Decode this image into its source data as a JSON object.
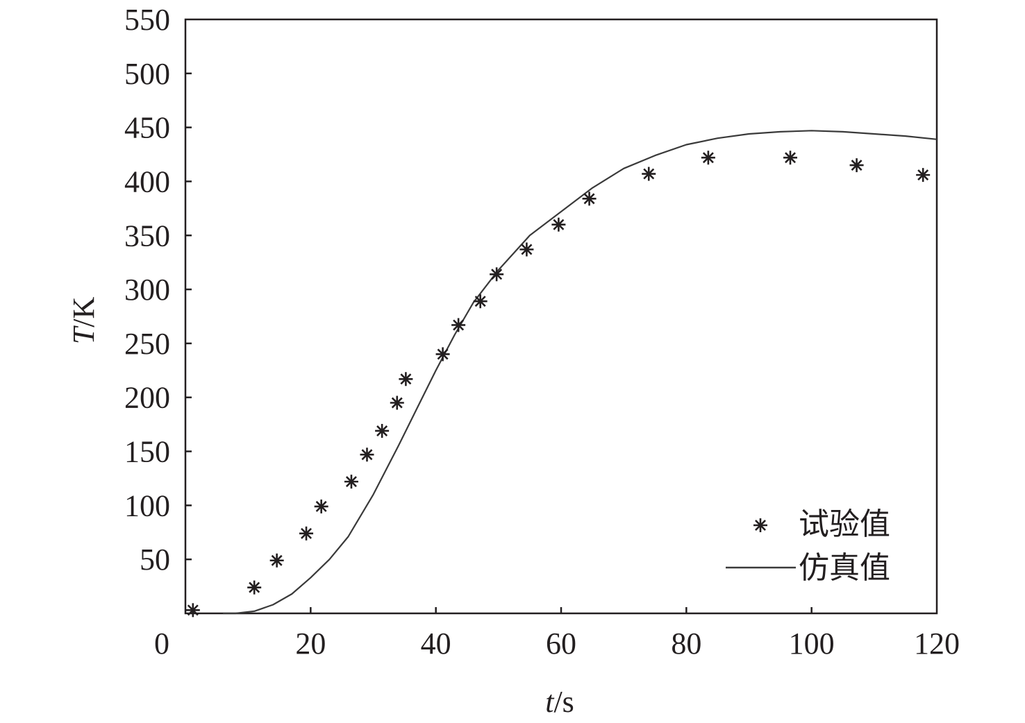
{
  "chart_data": {
    "type": "scatter+line",
    "title": "",
    "xlabel_italic": "t",
    "xlabel_unit": "/s",
    "ylabel_italic": "T",
    "ylabel_unit": "/K",
    "xlim": [
      0,
      120
    ],
    "ylim": [
      0,
      550
    ],
    "xticks": [
      0,
      20,
      40,
      60,
      80,
      100,
      120
    ],
    "yticks": [
      50,
      100,
      150,
      200,
      250,
      300,
      350,
      400,
      450,
      500,
      550
    ],
    "grid": false,
    "legend_position": "bottom-right",
    "series": [
      {
        "name": "试验值",
        "kind": "scatter",
        "marker": "asterisk",
        "color": "#231f20",
        "x": [
          1.2,
          11,
          14.6,
          19.3,
          21.7,
          26.5,
          29,
          31.4,
          33.8,
          35.2,
          41.1,
          43.6,
          47.1,
          49.7,
          54.5,
          59.6,
          64.5,
          74,
          83.5,
          96.6,
          107.2,
          117.8
        ],
        "y": [
          3,
          24,
          49,
          74,
          99,
          122,
          147,
          169,
          195,
          217,
          240,
          267,
          289,
          314,
          337,
          360,
          384,
          407,
          422,
          422,
          415,
          406
        ]
      },
      {
        "name": "仿真值",
        "kind": "line",
        "color": "#3a3a3a",
        "x": [
          8,
          11,
          14,
          17,
          20,
          23,
          26,
          30,
          34,
          37,
          40,
          43,
          46,
          50,
          55,
          60,
          65,
          70,
          75,
          80,
          85,
          90,
          95,
          100,
          105,
          110,
          115,
          120
        ],
        "y": [
          0,
          2,
          8,
          18,
          33,
          50,
          71,
          110,
          155,
          190,
          225,
          258,
          288,
          318,
          350,
          372,
          394,
          412,
          424,
          434,
          440,
          444,
          446,
          447,
          446,
          444,
          442,
          439
        ]
      }
    ]
  }
}
